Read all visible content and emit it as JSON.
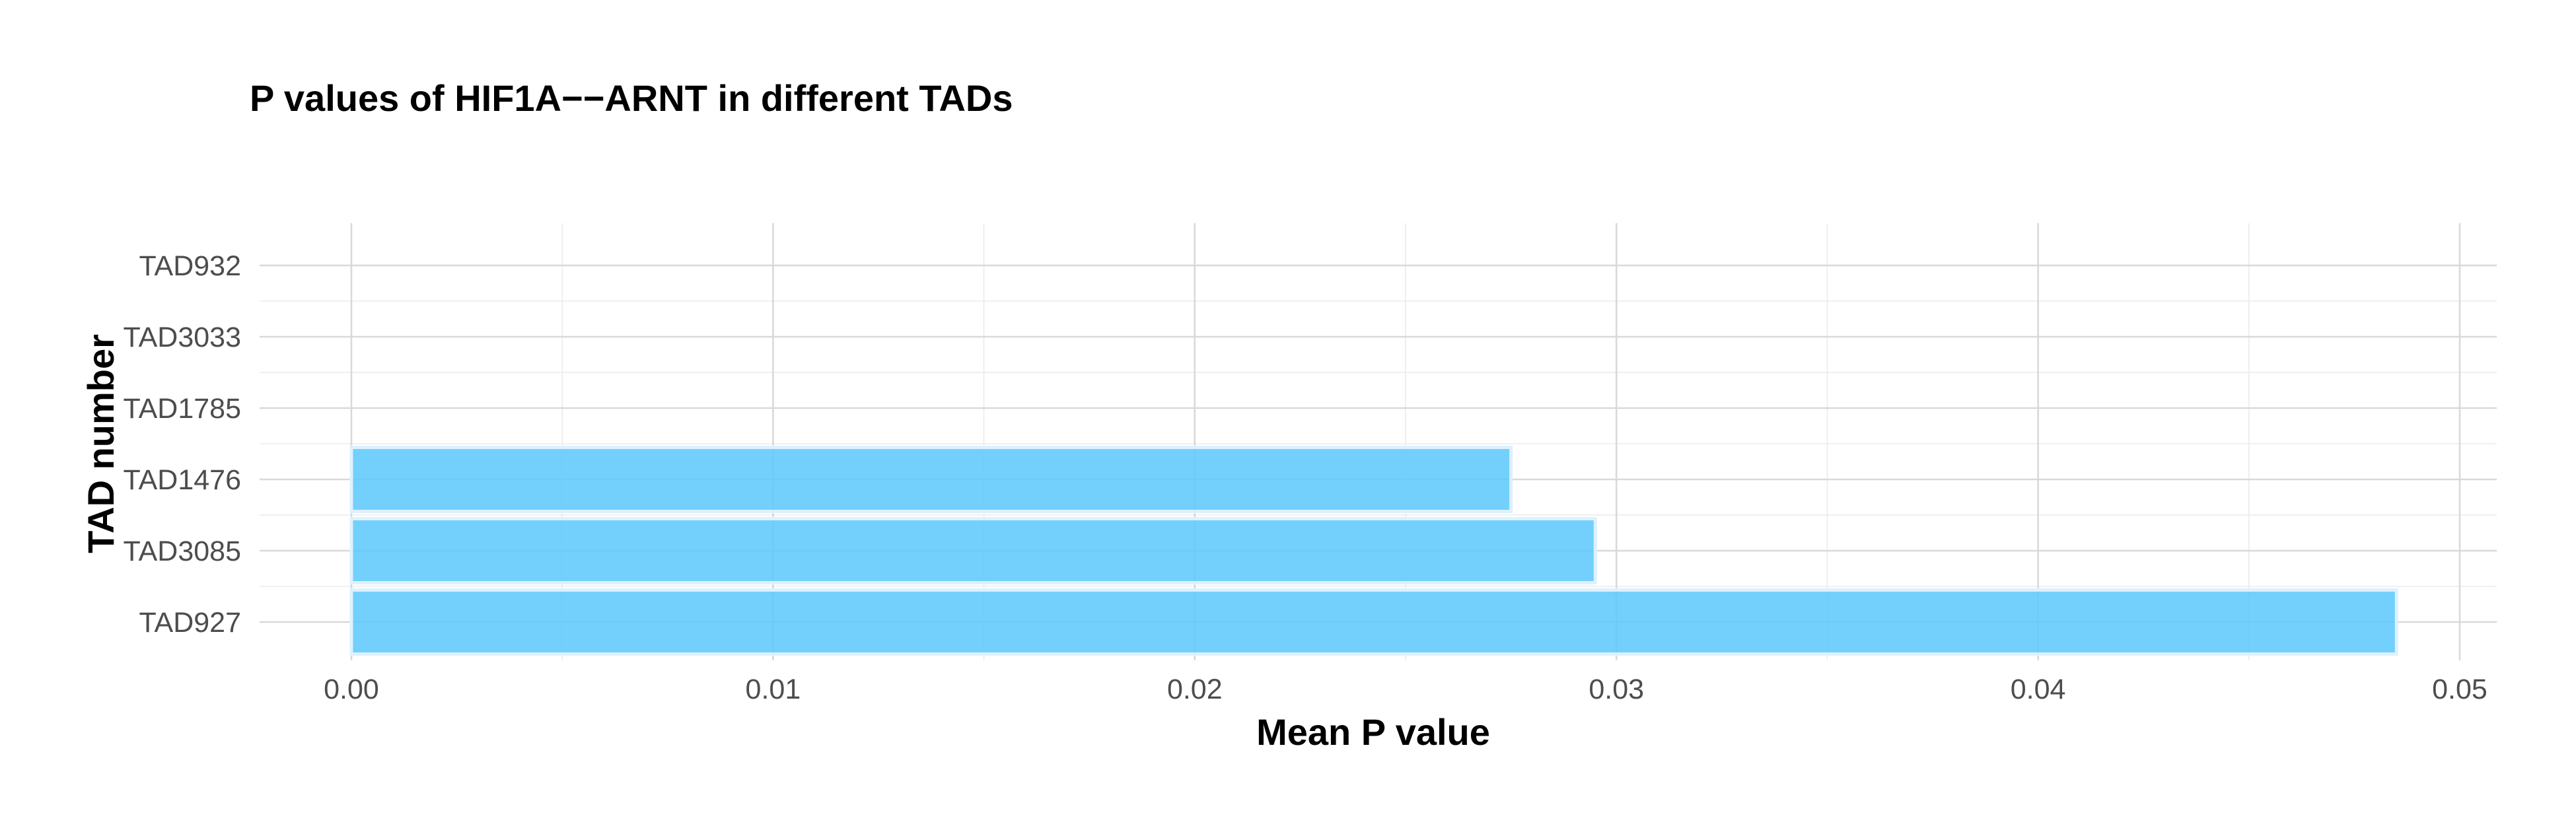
{
  "chart_data": {
    "type": "bar",
    "orientation": "horizontal",
    "title": "P values of HIF1A−−ARNT in different TADs",
    "xlabel": "Mean P value",
    "ylabel": "TAD number",
    "categories": [
      "TAD927",
      "TAD3085",
      "TAD1476",
      "TAD1785",
      "TAD3033",
      "TAD932"
    ],
    "values": [
      0.0485,
      0.0295,
      0.0275,
      0,
      0,
      0
    ],
    "xlim": [
      0,
      0.05
    ],
    "xticks": [
      0.0,
      0.01,
      0.02,
      0.03,
      0.04,
      0.05
    ],
    "xtick_labels": [
      "0.00",
      "0.01",
      "0.02",
      "0.03",
      "0.04",
      "0.05"
    ],
    "grid": true,
    "legend": "none",
    "colors": {
      "bar_fill": "#5bc8fb",
      "bar_outline": "#ddf1fd",
      "grid_major": "#d9d9d9",
      "grid_minor": "#ebebeb",
      "tick_text": "#4d4d4d"
    }
  }
}
